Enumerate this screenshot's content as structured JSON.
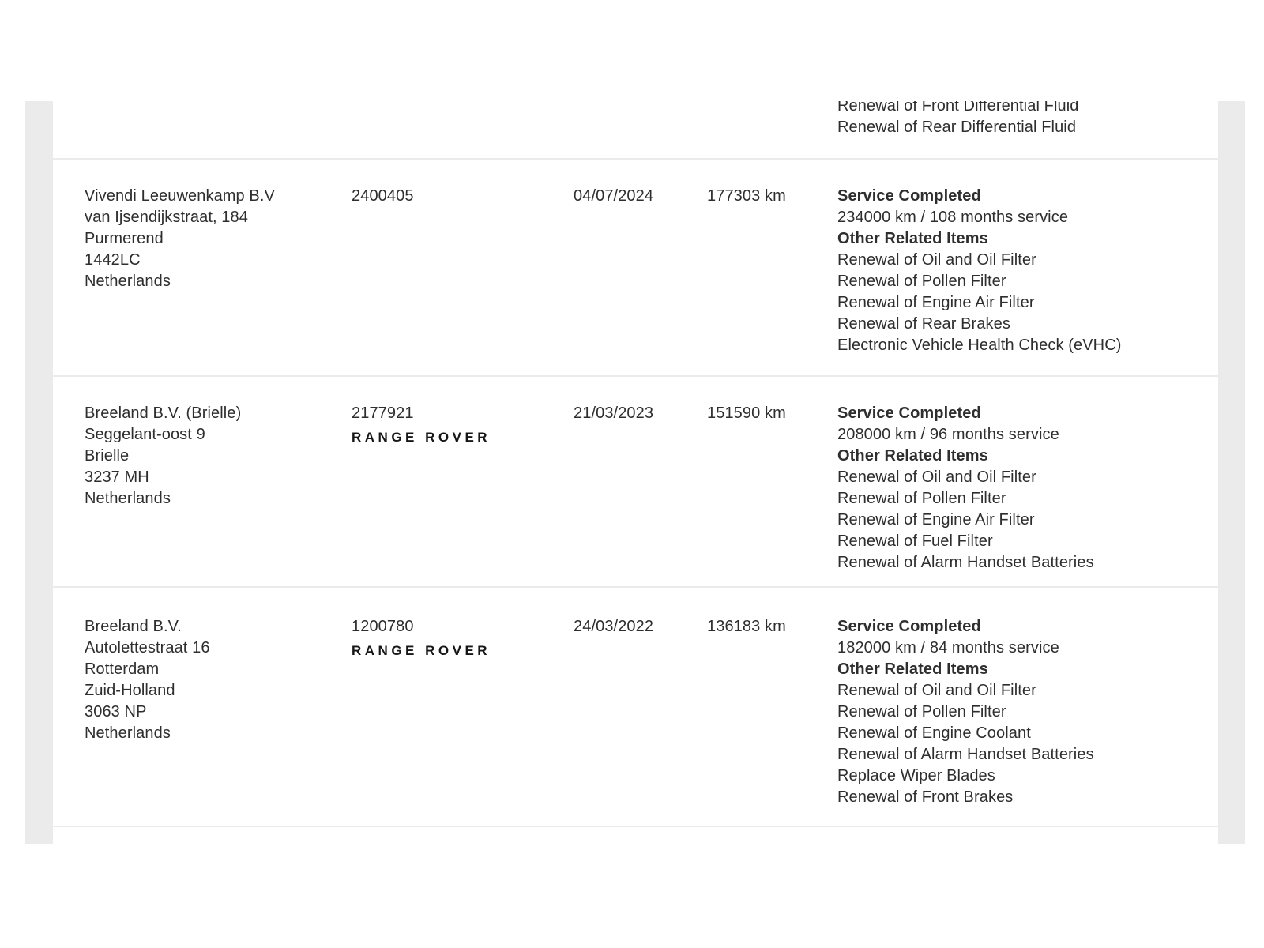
{
  "colors": {
    "page_background": "#ffffff",
    "gutter": "#ebebeb",
    "divider": "#ebebeb",
    "text": "#2e2e2e",
    "logo_text": "#161616"
  },
  "partial_record": {
    "items": [
      "Renewal of Front Differential Fluid",
      "Renewal of Rear Differential Fluid"
    ]
  },
  "records": [
    {
      "dealer": [
        "Vivendi Leeuwenkamp B.V",
        "van Ijsendijkstraat, 184",
        "Purmerend",
        "1442LC",
        "Netherlands"
      ],
      "reference": "2400405",
      "brand_logo": "",
      "date": "04/07/2024",
      "odometer": "177303 km",
      "status_heading": "Service Completed",
      "service_interval": "234000 km / 108 months service",
      "related_heading": "Other Related Items",
      "related_items": [
        "Renewal of Oil and Oil Filter",
        "Renewal of Pollen Filter",
        "Renewal of Engine Air Filter",
        "Renewal of Rear Brakes",
        "Electronic Vehicle Health Check (eVHC)"
      ]
    },
    {
      "dealer": [
        "Breeland B.V. (Brielle)",
        "Seggelant-oost 9",
        "Brielle",
        "3237 MH",
        "Netherlands"
      ],
      "reference": "2177921",
      "brand_logo": "RANGE ROVER",
      "date": "21/03/2023",
      "odometer": "151590 km",
      "status_heading": "Service Completed",
      "service_interval": "208000 km / 96 months service",
      "related_heading": "Other Related Items",
      "related_items": [
        "Renewal of Oil and Oil Filter",
        "Renewal of Pollen Filter",
        "Renewal of Engine Air Filter",
        "Renewal of Fuel Filter",
        "Renewal of Alarm Handset Batteries"
      ]
    },
    {
      "dealer": [
        "Breeland B.V.",
        "Autolettestraat 16",
        "Rotterdam",
        "Zuid-Holland",
        "3063 NP",
        "Netherlands"
      ],
      "reference": "1200780",
      "brand_logo": "RANGE ROVER",
      "date": "24/03/2022",
      "odometer": "136183 km",
      "status_heading": "Service Completed",
      "service_interval": "182000 km / 84 months service",
      "related_heading": "Other Related Items",
      "related_items": [
        "Renewal of Oil and Oil Filter",
        "Renewal of Pollen Filter",
        "Renewal of Engine Coolant",
        "Renewal of Alarm Handset Batteries",
        "Replace Wiper Blades",
        "Renewal of Front Brakes"
      ]
    }
  ]
}
